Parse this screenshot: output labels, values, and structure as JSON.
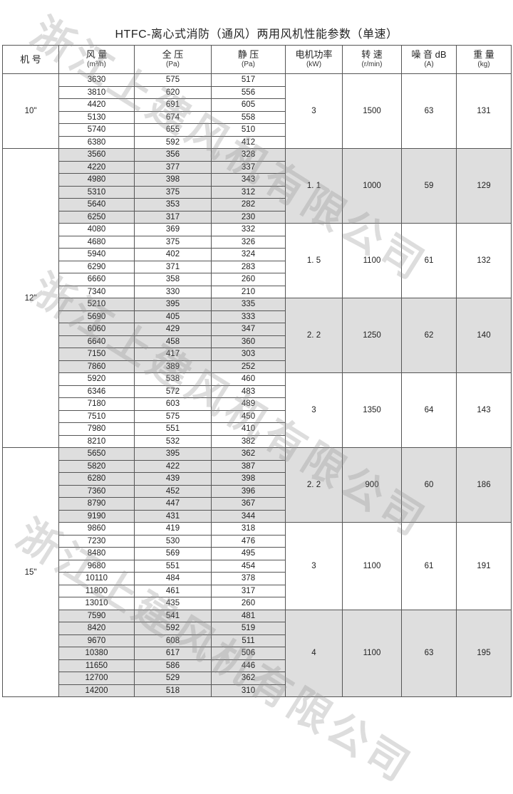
{
  "title": "HTFC-离心式消防（通风）两用风机性能参数（单速）",
  "watermark": "浙江上建风机有限公司",
  "colors": {
    "shade": "#dedede",
    "border": "#555555"
  },
  "headers": [
    {
      "label": "机 号",
      "unit": ""
    },
    {
      "label": "风 量",
      "unit": "(m³/h)"
    },
    {
      "label": "全 压",
      "unit": "(Pa)"
    },
    {
      "label": "静 压",
      "unit": "(Pa)"
    },
    {
      "label": "电机功率",
      "unit": "(kW)"
    },
    {
      "label": "转 速",
      "unit": "(r/min)"
    },
    {
      "label": "噪 音 dB",
      "unit": "(A)"
    },
    {
      "label": "重 量",
      "unit": "(kg)"
    }
  ],
  "models": [
    {
      "model": "10\"",
      "groups": [
        {
          "power": "3",
          "speed": "1500",
          "noise": "63",
          "weight": "131",
          "shaded": false,
          "rows": [
            [
              "3630",
              "575",
              "517"
            ],
            [
              "3810",
              "620",
              "556"
            ],
            [
              "4420",
              "691",
              "605"
            ],
            [
              "5130",
              "674",
              "558"
            ],
            [
              "5740",
              "655",
              "510"
            ],
            [
              "6380",
              "592",
              "412"
            ]
          ]
        }
      ]
    },
    {
      "model": "12\"",
      "groups": [
        {
          "power": "1. 1",
          "speed": "1000",
          "noise": "59",
          "weight": "129",
          "shaded": true,
          "rows": [
            [
              "3560",
              "356",
              "328"
            ],
            [
              "4220",
              "377",
              "337"
            ],
            [
              "4980",
              "398",
              "343"
            ],
            [
              "5310",
              "375",
              "312"
            ],
            [
              "5640",
              "353",
              "282"
            ],
            [
              "6250",
              "317",
              "230"
            ]
          ]
        },
        {
          "power": "1. 5",
          "speed": "1100",
          "noise": "61",
          "weight": "132",
          "shaded": false,
          "rows": [
            [
              "4080",
              "369",
              "332"
            ],
            [
              "4680",
              "375",
              "326"
            ],
            [
              "5940",
              "402",
              "324"
            ],
            [
              "6290",
              "371",
              "283"
            ],
            [
              "6660",
              "358",
              "260"
            ],
            [
              "7340",
              "330",
              "210"
            ]
          ]
        },
        {
          "power": "2. 2",
          "speed": "1250",
          "noise": "62",
          "weight": "140",
          "shaded": true,
          "rows": [
            [
              "5210",
              "395",
              "335"
            ],
            [
              "5690",
              "405",
              "333"
            ],
            [
              "6060",
              "429",
              "347"
            ],
            [
              "6640",
              "458",
              "360"
            ],
            [
              "7150",
              "417",
              "303"
            ],
            [
              "7860",
              "389",
              "252"
            ]
          ]
        },
        {
          "power": "3",
          "speed": "1350",
          "noise": "64",
          "weight": "143",
          "shaded": false,
          "rows": [
            [
              "5920",
              "538",
              "460"
            ],
            [
              "6346",
              "572",
              "483"
            ],
            [
              "7180",
              "603",
              "489"
            ],
            [
              "7510",
              "575",
              "450"
            ],
            [
              "7980",
              "551",
              "410"
            ],
            [
              "8210",
              "532",
              "382"
            ]
          ]
        }
      ]
    },
    {
      "model": "15\"",
      "groups": [
        {
          "power": "2. 2",
          "speed": "900",
          "noise": "60",
          "weight": "186",
          "shaded": true,
          "rows": [
            [
              "5650",
              "395",
              "362"
            ],
            [
              "5820",
              "422",
              "387"
            ],
            [
              "6280",
              "439",
              "398"
            ],
            [
              "7360",
              "452",
              "396"
            ],
            [
              "8790",
              "447",
              "367"
            ],
            [
              "9190",
              "431",
              "344"
            ]
          ]
        },
        {
          "power": "3",
          "speed": "1100",
          "noise": "61",
          "weight": "191",
          "shaded": false,
          "rows": [
            [
              "9860",
              "419",
              "318"
            ],
            [
              "7230",
              "530",
              "476"
            ],
            [
              "8480",
              "569",
              "495"
            ],
            [
              "9680",
              "551",
              "454"
            ],
            [
              "10110",
              "484",
              "378"
            ],
            [
              "11800",
              "461",
              "317"
            ],
            [
              "13010",
              "435",
              "260"
            ]
          ]
        },
        {
          "power": "4",
          "speed": "1100",
          "noise": "63",
          "weight": "195",
          "shaded": true,
          "rows": [
            [
              "7590",
              "541",
              "481"
            ],
            [
              "8420",
              "592",
              "519"
            ],
            [
              "9670",
              "608",
              "511"
            ],
            [
              "10380",
              "617",
              "506"
            ],
            [
              "11650",
              "586",
              "446"
            ],
            [
              "12700",
              "529",
              "362"
            ],
            [
              "14200",
              "518",
              "310"
            ]
          ]
        }
      ]
    }
  ]
}
